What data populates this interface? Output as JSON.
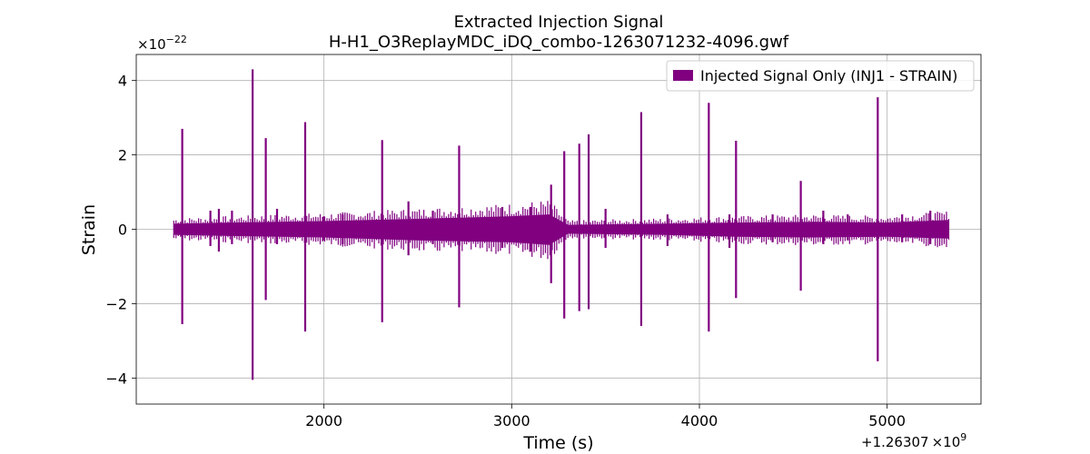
{
  "chart_data": {
    "type": "line",
    "title": "Extracted Injection Signal",
    "subtitle": "H-H1_O3ReplayMDC_iDQ_combo-1263071232-4096.gwf",
    "xlabel": "Time (s)",
    "ylabel": "Strain",
    "x_offset": "+1.26307",
    "x_offset_base": "×10",
    "x_offset_exp": "9",
    "y_multiplier_base": "×10",
    "y_multiplier_exp": "−22",
    "xlim": [
      1000,
      5500
    ],
    "ylim": [
      -4.7,
      4.7
    ],
    "grid": true,
    "legend_position": "top-right",
    "series_color": "#800080",
    "x_ticks": [
      {
        "value": 2000,
        "label": "2000"
      },
      {
        "value": 3000,
        "label": "3000"
      },
      {
        "value": 4000,
        "label": "4000"
      },
      {
        "value": 5000,
        "label": "5000"
      }
    ],
    "y_ticks": [
      {
        "value": 4,
        "label": "4"
      },
      {
        "value": 2,
        "label": "2"
      },
      {
        "value": 0,
        "label": "0"
      },
      {
        "value": -2,
        "label": "−2"
      },
      {
        "value": -4,
        "label": "−4"
      }
    ],
    "series": [
      {
        "name": "Injected Signal Only (INJ1 - STRAIN)",
        "data_range": [
          1200,
          5330
        ],
        "noise_envelope": [
          {
            "x": 1200,
            "up": 0.15,
            "down": -0.15
          },
          {
            "x": 1500,
            "up": 0.18,
            "down": -0.18
          },
          {
            "x": 2000,
            "up": 0.22,
            "down": -0.22
          },
          {
            "x": 2500,
            "up": 0.28,
            "down": -0.3
          },
          {
            "x": 3000,
            "up": 0.35,
            "down": -0.35
          },
          {
            "x": 3200,
            "up": 0.4,
            "down": -0.42
          },
          {
            "x": 3300,
            "up": 0.12,
            "down": -0.12
          },
          {
            "x": 3800,
            "up": 0.15,
            "down": -0.15
          },
          {
            "x": 4200,
            "up": 0.18,
            "down": -0.2
          },
          {
            "x": 4600,
            "up": 0.2,
            "down": -0.22
          },
          {
            "x": 5000,
            "up": 0.18,
            "down": -0.2
          },
          {
            "x": 5330,
            "up": 0.25,
            "down": -0.25
          }
        ],
        "spikes": [
          {
            "x": 1245,
            "max": 2.7,
            "min": -2.55
          },
          {
            "x": 1395,
            "max": 0.5,
            "min": -0.45
          },
          {
            "x": 1440,
            "max": 0.55,
            "min": -0.6
          },
          {
            "x": 1510,
            "max": 0.5,
            "min": -0.4
          },
          {
            "x": 1620,
            "max": 4.3,
            "min": -4.05
          },
          {
            "x": 1690,
            "max": 2.45,
            "min": -1.9
          },
          {
            "x": 1750,
            "max": 0.55,
            "min": -0.4
          },
          {
            "x": 1900,
            "max": 2.88,
            "min": -2.75
          },
          {
            "x": 2000,
            "max": 0.35,
            "min": -0.3
          },
          {
            "x": 2100,
            "max": 0.4,
            "min": -0.4
          },
          {
            "x": 2310,
            "max": 2.4,
            "min": -2.5
          },
          {
            "x": 2450,
            "max": 0.75,
            "min": -0.7
          },
          {
            "x": 2580,
            "max": 0.5,
            "min": -0.4
          },
          {
            "x": 2720,
            "max": 2.25,
            "min": -2.1
          },
          {
            "x": 2950,
            "max": 0.6,
            "min": -0.5
          },
          {
            "x": 3100,
            "max": 0.6,
            "min": -0.6
          },
          {
            "x": 3210,
            "max": 1.2,
            "min": -1.45
          },
          {
            "x": 3280,
            "max": 2.1,
            "min": -2.4
          },
          {
            "x": 3360,
            "max": 2.3,
            "min": -2.2
          },
          {
            "x": 3410,
            "max": 2.55,
            "min": -2.15
          },
          {
            "x": 3500,
            "max": 0.55,
            "min": -0.5
          },
          {
            "x": 3690,
            "max": 3.15,
            "min": -2.6
          },
          {
            "x": 3830,
            "max": 0.4,
            "min": -0.45
          },
          {
            "x": 4050,
            "max": 3.4,
            "min": -2.75
          },
          {
            "x": 4160,
            "max": 0.4,
            "min": -0.5
          },
          {
            "x": 4195,
            "max": 2.38,
            "min": -1.85
          },
          {
            "x": 4390,
            "max": 0.4,
            "min": -0.35
          },
          {
            "x": 4540,
            "max": 1.3,
            "min": -1.65
          },
          {
            "x": 4660,
            "max": 0.5,
            "min": -0.4
          },
          {
            "x": 4790,
            "max": 0.4,
            "min": -0.3
          },
          {
            "x": 4950,
            "max": 3.55,
            "min": -3.55
          },
          {
            "x": 5080,
            "max": 0.4,
            "min": -0.35
          },
          {
            "x": 5230,
            "max": 0.5,
            "min": -0.4
          }
        ]
      }
    ]
  }
}
